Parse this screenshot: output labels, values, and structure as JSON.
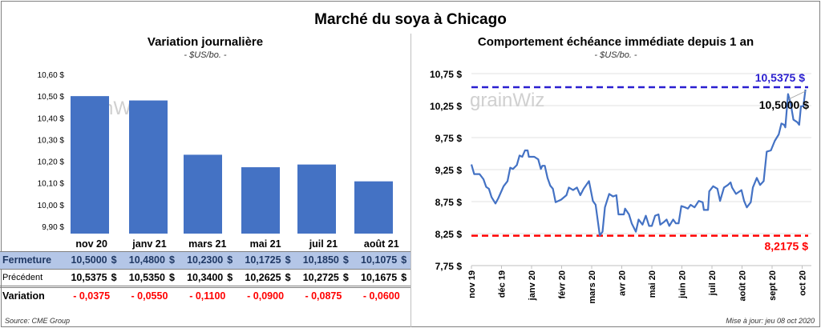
{
  "title": "Marché du soya à Chicago",
  "colors": {
    "bar": "#4472c4",
    "line": "#4472c4",
    "max": "#2a1fd0",
    "min": "#ff0000",
    "header_row": "#b4c6e7"
  },
  "chart_data": [
    {
      "type": "bar",
      "title": "Variation journalière",
      "subtitle": "- $US/bo. -",
      "categories": [
        "nov 20",
        "janv 21",
        "mars 21",
        "mai 21",
        "juil 21",
        "août 21"
      ],
      "values": [
        10.5,
        10.48,
        10.23,
        10.1725,
        10.185,
        10.1075
      ],
      "ylim": [
        9.9,
        10.6
      ],
      "yticks": [
        "9,90 $",
        "10,00 $",
        "10,10 $",
        "10,20 $",
        "10,30 $",
        "10,40 $",
        "10,50 $",
        "10,60 $"
      ],
      "watermark": "grainWiz"
    },
    {
      "type": "line",
      "title": "Comportement  échéance immédiate depuis 1 an",
      "subtitle": "- $US/bo. -",
      "ylim": [
        7.75,
        10.75
      ],
      "yticks": [
        "7,75 $",
        "8,25 $",
        "8,75 $",
        "9,25 $",
        "9,75 $",
        "10,25 $",
        "10,75 $"
      ],
      "ytick_values": [
        7.75,
        8.25,
        8.75,
        9.25,
        9.75,
        10.25,
        10.75
      ],
      "xticks": [
        "nov 19",
        "déc 19",
        "janv 20",
        "févr 20",
        "mars 20",
        "avr 20",
        "mai 20",
        "juin 20",
        "juil 20",
        "août 20",
        "sept 20",
        "oct 20"
      ],
      "x_unit": "months since nov 2019",
      "max_line": {
        "value": 10.5375,
        "label": "10,5375  $"
      },
      "min_line": {
        "value": 8.2175,
        "label": "8,2175  $"
      },
      "last_label": "10,5000 $",
      "watermark": "grainWiz",
      "points": [
        [
          0,
          9.33
        ],
        [
          0.09,
          9.18
        ],
        [
          0.27,
          9.18
        ],
        [
          0.4,
          9.1
        ],
        [
          0.49,
          8.98
        ],
        [
          0.58,
          8.95
        ],
        [
          0.67,
          8.82
        ],
        [
          0.8,
          8.72
        ],
        [
          0.89,
          8.8
        ],
        [
          1.07,
          8.99
        ],
        [
          1.2,
          9.07
        ],
        [
          1.29,
          9.28
        ],
        [
          1.38,
          9.26
        ],
        [
          1.51,
          9.32
        ],
        [
          1.6,
          9.47
        ],
        [
          1.69,
          9.45
        ],
        [
          1.78,
          9.55
        ],
        [
          1.87,
          9.55
        ],
        [
          1.91,
          9.45
        ],
        [
          2.09,
          9.45
        ],
        [
          2.22,
          9.41
        ],
        [
          2.31,
          9.26
        ],
        [
          2.36,
          9.31
        ],
        [
          2.44,
          9.31
        ],
        [
          2.53,
          9.12
        ],
        [
          2.62,
          9.0
        ],
        [
          2.71,
          8.95
        ],
        [
          2.8,
          8.74
        ],
        [
          2.98,
          8.78
        ],
        [
          3.16,
          8.85
        ],
        [
          3.24,
          8.97
        ],
        [
          3.38,
          8.93
        ],
        [
          3.51,
          8.97
        ],
        [
          3.62,
          8.85
        ],
        [
          3.73,
          8.95
        ],
        [
          3.91,
          9.07
        ],
        [
          4.04,
          8.76
        ],
        [
          4.13,
          8.7
        ],
        [
          4.27,
          8.22
        ],
        [
          4.36,
          8.28
        ],
        [
          4.44,
          8.66
        ],
        [
          4.58,
          8.87
        ],
        [
          4.71,
          8.83
        ],
        [
          4.82,
          8.85
        ],
        [
          4.89,
          8.55
        ],
        [
          5.07,
          8.55
        ],
        [
          5.11,
          8.64
        ],
        [
          5.24,
          8.55
        ],
        [
          5.33,
          8.41
        ],
        [
          5.47,
          8.28
        ],
        [
          5.56,
          8.47
        ],
        [
          5.69,
          8.39
        ],
        [
          5.8,
          8.53
        ],
        [
          5.91,
          8.37
        ],
        [
          6.0,
          8.37
        ],
        [
          6.11,
          8.53
        ],
        [
          6.22,
          8.55
        ],
        [
          6.28,
          8.39
        ],
        [
          6.4,
          8.43
        ],
        [
          6.49,
          8.47
        ],
        [
          6.58,
          8.37
        ],
        [
          6.71,
          8.47
        ],
        [
          6.8,
          8.41
        ],
        [
          6.89,
          8.41
        ],
        [
          6.98,
          8.68
        ],
        [
          7.11,
          8.66
        ],
        [
          7.2,
          8.64
        ],
        [
          7.29,
          8.7
        ],
        [
          7.42,
          8.66
        ],
        [
          7.56,
          8.76
        ],
        [
          7.69,
          8.74
        ],
        [
          7.73,
          8.62
        ],
        [
          7.87,
          8.62
        ],
        [
          7.91,
          8.91
        ],
        [
          8.04,
          8.99
        ],
        [
          8.18,
          8.95
        ],
        [
          8.27,
          8.76
        ],
        [
          8.4,
          8.97
        ],
        [
          8.53,
          9.01
        ],
        [
          8.62,
          9.05
        ],
        [
          8.67,
          8.97
        ],
        [
          8.8,
          8.87
        ],
        [
          8.98,
          8.93
        ],
        [
          9.07,
          8.76
        ],
        [
          9.16,
          8.66
        ],
        [
          9.29,
          8.74
        ],
        [
          9.36,
          8.97
        ],
        [
          9.49,
          9.12
        ],
        [
          9.6,
          9.01
        ],
        [
          9.72,
          9.07
        ],
        [
          9.82,
          9.53
        ],
        [
          9.96,
          9.55
        ],
        [
          10.09,
          9.7
        ],
        [
          10.22,
          9.8
        ],
        [
          10.31,
          9.97
        ],
        [
          10.4,
          9.95
        ],
        [
          10.44,
          9.91
        ],
        [
          10.53,
          10.43
        ],
        [
          10.62,
          10.28
        ],
        [
          10.71,
          10.03
        ],
        [
          10.84,
          9.99
        ],
        [
          10.9,
          9.95
        ],
        [
          10.96,
          10.24
        ],
        [
          11.04,
          10.24
        ],
        [
          11.11,
          10.5
        ]
      ]
    }
  ],
  "table": {
    "rows": [
      {
        "label": "Fermeture",
        "values": [
          "10,5000",
          "10,4800",
          "10,2300",
          "10,1725",
          "10,1850",
          "10,1075"
        ]
      },
      {
        "label": "Précédent",
        "values": [
          "10,5375",
          "10,5350",
          "10,3400",
          "10,2625",
          "10,2725",
          "10,1675"
        ]
      }
    ],
    "currency": "$",
    "variation": {
      "label": "Variation",
      "values": [
        "- 0,0375",
        "- 0,0550",
        "- 0,1100",
        "- 0,0900",
        "- 0,0875",
        "- 0,0600"
      ]
    }
  },
  "source": "Source: CME Group",
  "updated": "Mise à jour: jeu 08 oct 2020"
}
